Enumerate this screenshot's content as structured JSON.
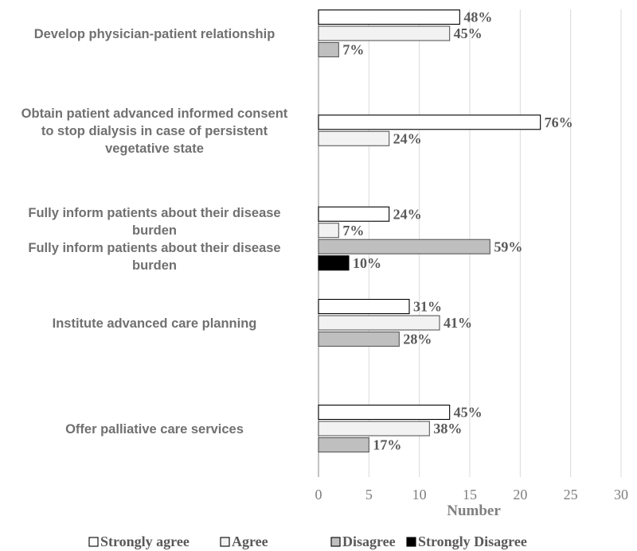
{
  "chart_data": {
    "type": "bar",
    "orientation": "horizontal",
    "title": "",
    "xlabel": "Number",
    "ylabel": "",
    "xlim": [
      0,
      30
    ],
    "xticks": [
      0,
      5,
      10,
      15,
      20,
      25,
      30
    ],
    "grid": "vertical",
    "legend_position": "bottom",
    "series_styles": [
      {
        "name": "Strongly agree",
        "fill": "#ffffff",
        "stroke": "#000000"
      },
      {
        "name": "Agree",
        "fill": "#f2f2f2",
        "stroke": "#595959"
      },
      {
        "name": "Disagree",
        "fill": "#bfbfbf",
        "stroke": "#595959"
      },
      {
        "name": "Strongly Disagree",
        "fill": "#000000",
        "stroke": "#000000"
      }
    ],
    "categories": [
      {
        "lines": [
          "Develop physician-patient relationship"
        ],
        "bars": [
          {
            "series": "Strongly agree",
            "value": 14,
            "label": "48%"
          },
          {
            "series": "Agree",
            "value": 13,
            "label": "45%"
          },
          {
            "series": "Disagree",
            "value": 2,
            "label": "7%"
          }
        ]
      },
      {
        "lines": [
          "Obtain patient advanced informed consent",
          "to stop dialysis in case of persistent",
          "vegetative state"
        ],
        "bars": [
          {
            "series": "Strongly agree",
            "value": 22,
            "label": "76%"
          },
          {
            "series": "Agree",
            "value": 7,
            "label": "24%"
          }
        ]
      },
      {
        "lines": [
          "Fully inform patients about their disease",
          "burden",
          "Fully inform patients about their disease",
          "burden"
        ],
        "bars": [
          {
            "series": "Strongly agree",
            "value": 7,
            "label": "24%"
          },
          {
            "series": "Agree",
            "value": 2,
            "label": "7%"
          },
          {
            "series": "Disagree",
            "value": 17,
            "label": "59%"
          },
          {
            "series": "Strongly Disagree",
            "value": 3,
            "label": "10%"
          }
        ]
      },
      {
        "lines": [
          "Institute advanced care planning"
        ],
        "bars": [
          {
            "series": "Strongly agree",
            "value": 9,
            "label": "31%"
          },
          {
            "series": "Agree",
            "value": 12,
            "label": "41%"
          },
          {
            "series": "Disagree",
            "value": 8,
            "label": "28%"
          }
        ]
      },
      {
        "lines": [
          "Offer palliative care services"
        ],
        "bars": [
          {
            "series": "Strongly agree",
            "value": 13,
            "label": "45%"
          },
          {
            "series": "Agree",
            "value": 11,
            "label": "38%"
          },
          {
            "series": "Disagree",
            "value": 5,
            "label": "17%"
          }
        ]
      }
    ],
    "legend": [
      "Strongly agree",
      "Agree",
      "Disagree",
      "Strongly Disagree"
    ]
  }
}
